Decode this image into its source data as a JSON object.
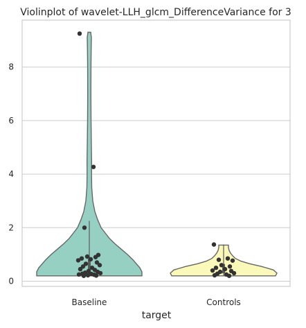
{
  "chart_data": {
    "type": "violin",
    "title": "Violinplot of wavelet-LLH_glcm_DifferenceVariance for 3",
    "xlabel": "target",
    "ylabel": "",
    "ylim": [
      -0.2,
      9.6
    ],
    "yticks": [
      0,
      2,
      4,
      6,
      8
    ],
    "grid": true,
    "categories": [
      "Baseline",
      "Controls"
    ],
    "colors": [
      "#95d0c3",
      "#fbf9b9"
    ],
    "series": [
      {
        "category": "Baseline",
        "violin_range": [
          0.2,
          9.3
        ],
        "points": [
          9.25,
          4.27,
          2.0,
          0.98,
          0.92,
          0.9,
          0.85,
          0.82,
          0.78,
          0.7,
          0.65,
          0.6,
          0.55,
          0.5,
          0.45,
          0.42,
          0.38,
          0.35,
          0.32,
          0.3,
          0.28,
          0.27,
          0.25,
          0.24,
          0.22,
          0.21,
          0.2
        ]
      },
      {
        "category": "Controls",
        "violin_range": [
          0.2,
          1.35
        ],
        "points": [
          1.37,
          0.85,
          0.8,
          0.77,
          0.6,
          0.55,
          0.5,
          0.45,
          0.4,
          0.38,
          0.35,
          0.3,
          0.28,
          0.25,
          0.22,
          0.2
        ]
      }
    ]
  }
}
